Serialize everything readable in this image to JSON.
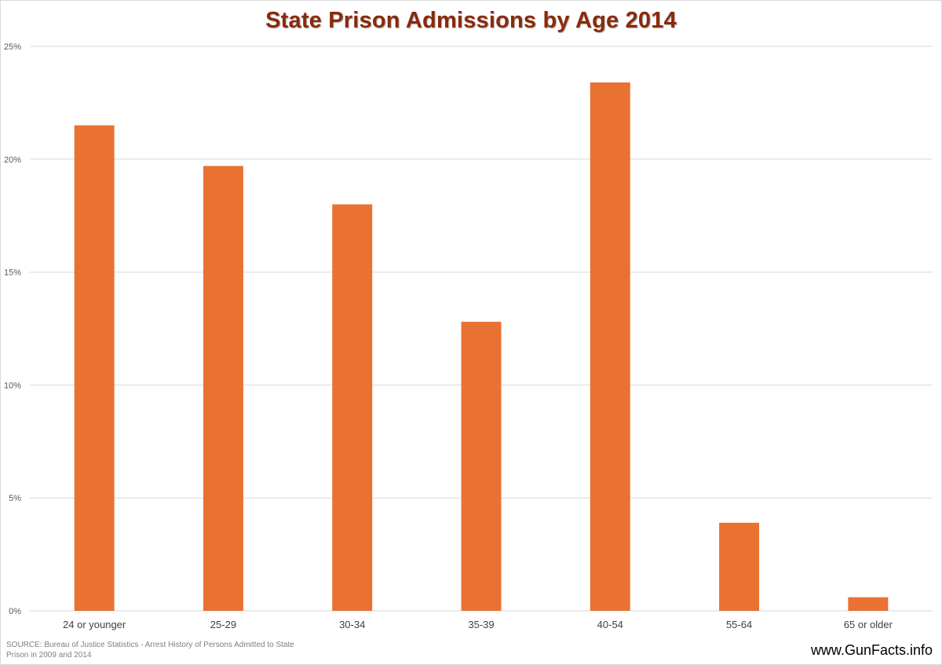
{
  "chart_data": {
    "type": "bar",
    "title": "State Prison Admissions by Age 2014",
    "categories": [
      "24 or younger",
      "25-29",
      "30-34",
      "35-39",
      "40-54",
      "55-64",
      "65 or older"
    ],
    "values": [
      21.5,
      19.7,
      18.0,
      12.8,
      23.4,
      3.9,
      0.6
    ],
    "xlabel": "",
    "ylabel": "",
    "ylim": [
      0,
      25
    ],
    "yticks": [
      0,
      5,
      10,
      15,
      20,
      25
    ],
    "ytick_labels": [
      "0%",
      "5%",
      "10%",
      "15%",
      "20%",
      "25%"
    ],
    "grid": true,
    "bar_color": "#E97132",
    "legend": "none"
  },
  "footer": {
    "source": "SOURCE: Bureau of Justice Statistics - Arrest History of Persons Admitted to State Prison in 2009 and 2014",
    "site": "www.GunFacts.info"
  },
  "colors": {
    "title": "#8A2A0B",
    "grid": "#D9D9D9"
  }
}
